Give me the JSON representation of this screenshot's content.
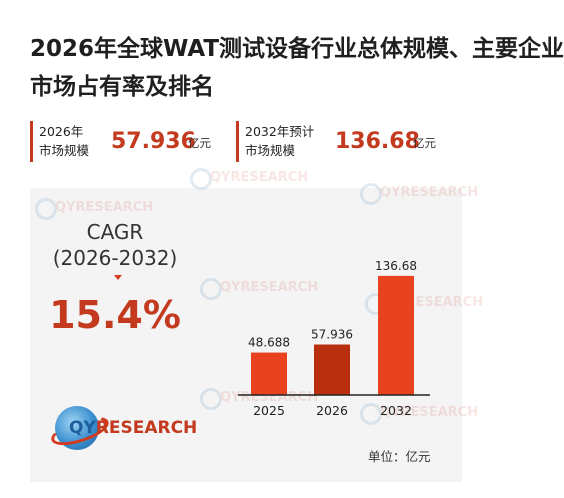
{
  "title_line1": "2026年全球WAT测试设备行业总体规模、主要企业",
  "title_line2": "市场占有率及排名",
  "stats": [
    {
      "label_l1": "2026年",
      "label_l2": "市场规模",
      "value": "57.936",
      "unit": "亿元"
    },
    {
      "label_l1": "2032年预计",
      "label_l2": "市场规模",
      "value": "136.68",
      "unit": "亿元"
    }
  ],
  "cagr": {
    "label": "CAGR",
    "period": "(2026-2032)",
    "value": "15.4%"
  },
  "logo": {
    "q": "QY",
    "rest": "RESEARCH"
  },
  "watermark": "QYRESEARCH",
  "unit_note": "单位：亿元",
  "colors": {
    "accent": "#c33a1f",
    "bar_light": "#e8431e",
    "bar_dark": "#b8300f",
    "panel": "#f4f4f4"
  },
  "chart_data": {
    "type": "bar",
    "categories": [
      "2025",
      "2026",
      "2032"
    ],
    "values": [
      48.688,
      57.936,
      136.68
    ],
    "value_labels": [
      "48.688",
      "57.936",
      "136.68"
    ],
    "title": "",
    "xlabel": "",
    "ylabel": "",
    "ylim": [
      0,
      140
    ],
    "bar_colors": [
      "#e8431e",
      "#b8300f",
      "#e8431e"
    ],
    "grid": false
  }
}
